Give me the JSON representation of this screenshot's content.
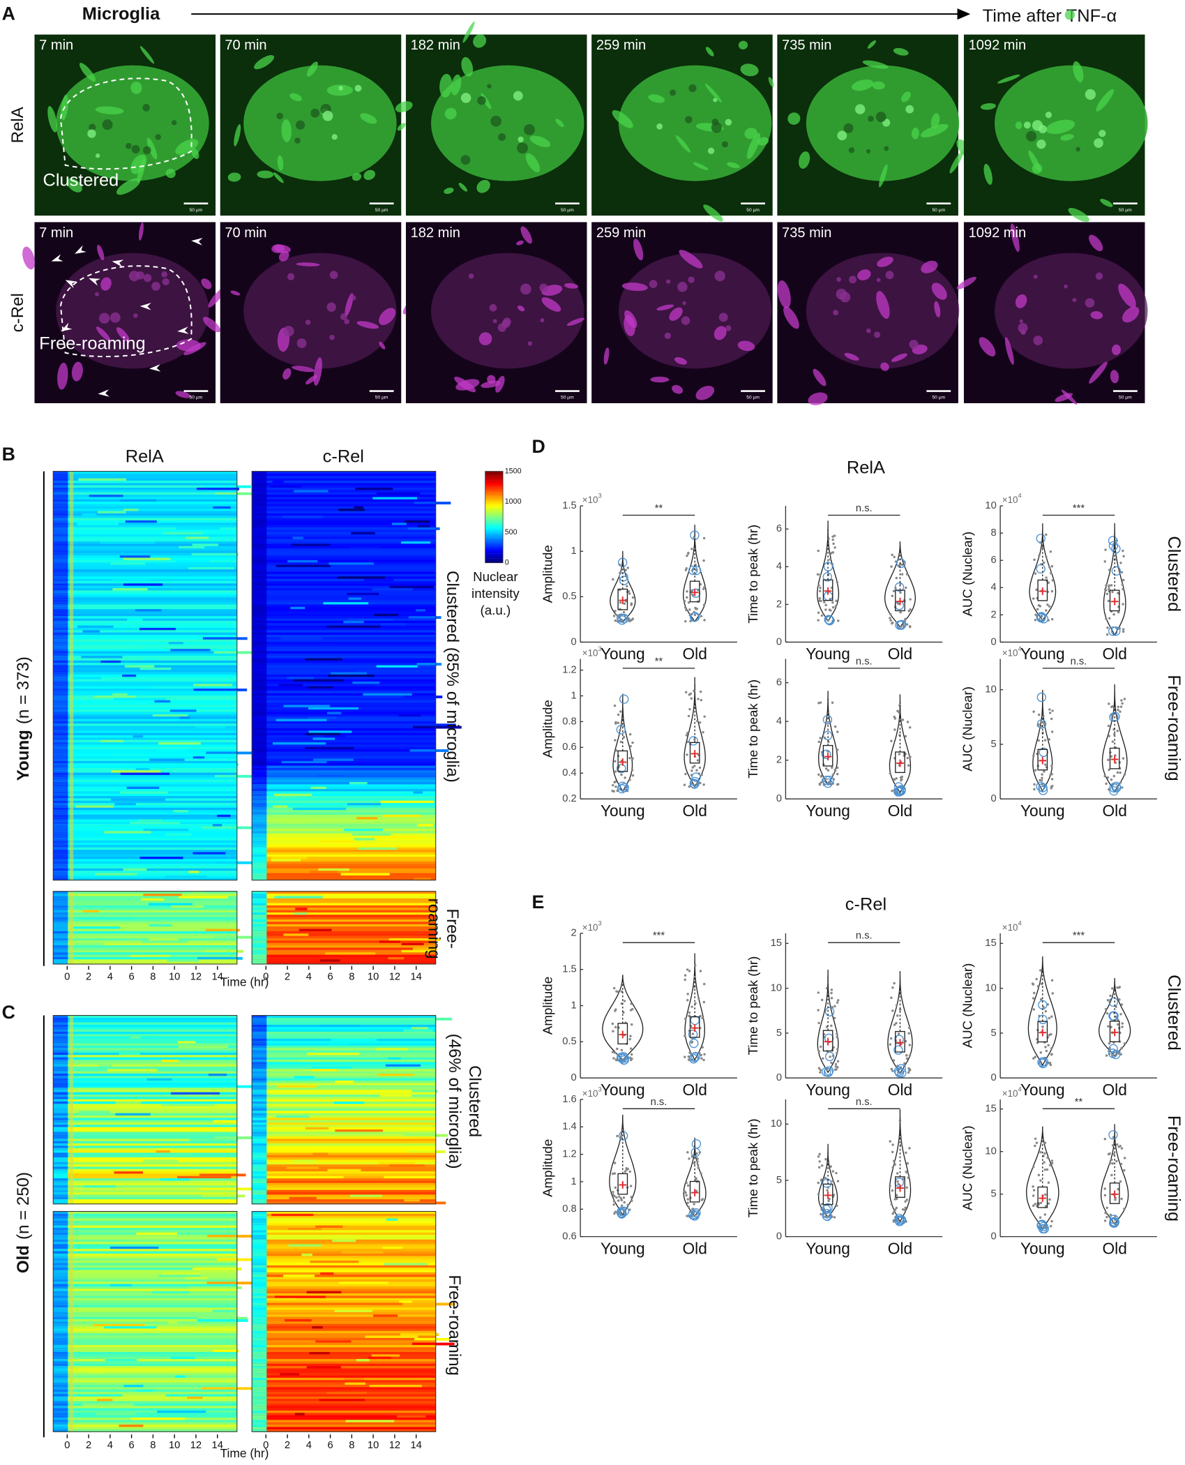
{
  "panel_a": {
    "label": "A",
    "title": "Microglia",
    "axis_label": "Time after TNF-α",
    "rows": [
      "RelA",
      "c-Rel"
    ],
    "times": [
      "7 min",
      "70 min",
      "182 min",
      "259 min",
      "735 min",
      "1092 min"
    ],
    "scale_bar": "50 µm",
    "annotations": [
      "Clustered",
      "Free-roaming"
    ]
  },
  "panel_b": {
    "label": "B",
    "columns": [
      "RelA",
      "c-Rel"
    ],
    "group": "Young",
    "group_n": "(n = 373)",
    "row_labels": [
      [
        "Clustered (85% of microglia)"
      ],
      [
        "Free-",
        "roaming"
      ]
    ],
    "time_ticks": [
      "0",
      "2",
      "4",
      "6",
      "8",
      "10",
      "12",
      "14"
    ],
    "time_label": "Time (hr)",
    "colorbar": {
      "ticks": [
        "0",
        "500",
        "1000",
        "1500"
      ],
      "label": [
        "Nuclear",
        "intensity",
        "(a.u.)"
      ]
    }
  },
  "panel_c": {
    "label": "C",
    "group": "Old",
    "group_n": "(n = 250)",
    "row_labels": [
      [
        "Clustered",
        "(46% of microglia)"
      ],
      [
        "Free-roaming"
      ]
    ],
    "time_ticks": [
      "0",
      "2",
      "4",
      "6",
      "8",
      "10",
      "12",
      "14"
    ],
    "time_label": "Time (hr)"
  },
  "panel_d": {
    "label": "D",
    "title": "RelA",
    "groups": [
      "Young",
      "Old"
    ],
    "row_labels": [
      "Clustered",
      "Free-roaming"
    ],
    "rows": [
      [
        {
          "ylabel": "Amplitude",
          "exponent": {
            "base": "×10",
            "power": "3"
          },
          "yticks": [
            "0",
            "0.5",
            "1",
            "1.5"
          ],
          "significance": "**"
        },
        {
          "ylabel": "Time to peak (hr)",
          "yticks": [
            "0",
            "2",
            "4",
            "6"
          ],
          "significance": "n.s."
        },
        {
          "ylabel": "AUC (Nuclear)",
          "exponent": {
            "base": "×10",
            "power": "4"
          },
          "yticks": [
            "0",
            "2",
            "4",
            "6",
            "8",
            "10"
          ],
          "significance": "***"
        }
      ],
      [
        {
          "ylabel": "Amplitude",
          "exponent": {
            "base": "×10",
            "power": "3"
          },
          "yticks": [
            "0.2",
            "0.4",
            "0.6",
            "0.8",
            "1",
            "1.2"
          ],
          "significance": "**"
        },
        {
          "ylabel": "Time to peak (hr)",
          "yticks": [
            "0",
            "2",
            "4",
            "6"
          ],
          "significance": "n.s."
        },
        {
          "ylabel": "AUC (Nuclear)",
          "exponent": {
            "base": "×10",
            "power": "4"
          },
          "yticks": [
            "0",
            "5",
            "10"
          ],
          "significance": "n.s."
        }
      ]
    ]
  },
  "panel_e": {
    "label": "E",
    "title": "c-Rel",
    "groups": [
      "Young",
      "Old"
    ],
    "row_labels": [
      "Clustered",
      "Free-roaming"
    ],
    "rows": [
      [
        {
          "ylabel": "Amplitude",
          "exponent": {
            "base": "×10",
            "power": "3"
          },
          "yticks": [
            "0",
            "0.5",
            "1",
            "1.5",
            "2"
          ],
          "significance": "***"
        },
        {
          "ylabel": "Time to peak (hr)",
          "yticks": [
            "0",
            "5",
            "10",
            "15"
          ],
          "significance": "n.s."
        },
        {
          "ylabel": "AUC (Nuclear)",
          "exponent": {
            "base": "×10",
            "power": "4"
          },
          "yticks": [
            "0",
            "5",
            "10",
            "15"
          ],
          "significance": "***"
        }
      ],
      [
        {
          "ylabel": "Amplitude",
          "exponent": {
            "base": "×10",
            "power": "3"
          },
          "yticks": [
            "0.6",
            "0.8",
            "1",
            "1.2",
            "1.4",
            "1.6"
          ],
          "significance": "n.s."
        },
        {
          "ylabel": "Time to peak (hr)",
          "yticks": [
            "0",
            "5",
            "10"
          ],
          "significance": "n.s."
        },
        {
          "ylabel": "AUC (Nuclear)",
          "exponent": {
            "base": "×10",
            "power": "4"
          },
          "yticks": [
            "0",
            "5",
            "10",
            "15"
          ],
          "significance": "**"
        }
      ]
    ]
  }
}
